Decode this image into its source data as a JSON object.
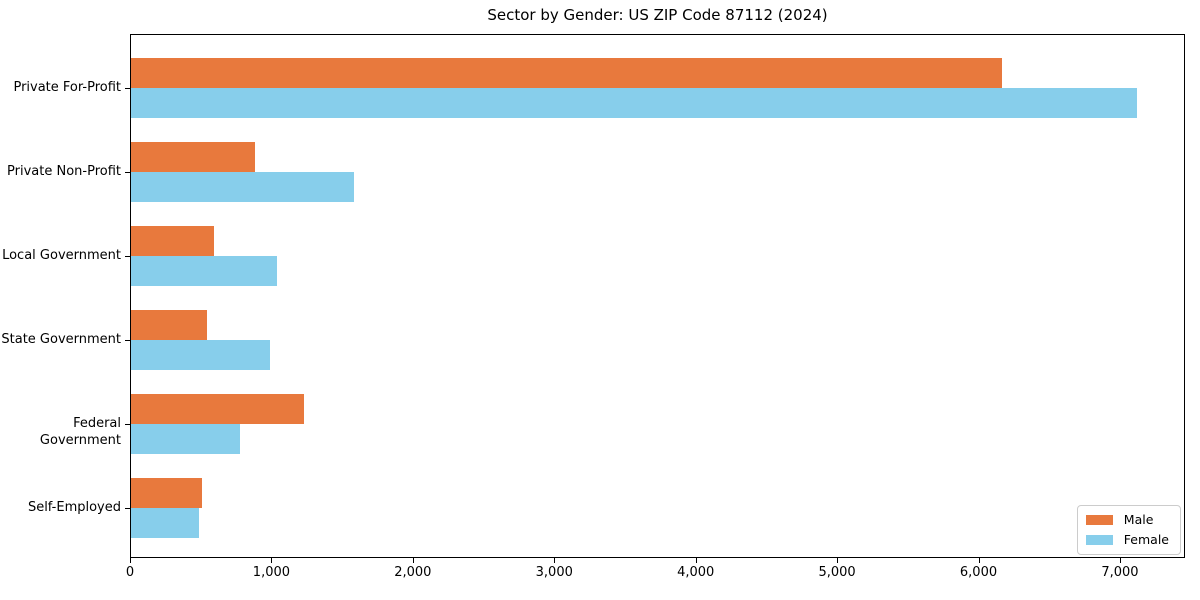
{
  "chart_data": {
    "type": "bar",
    "orientation": "horizontal",
    "title": "Sector by Gender: US ZIP Code 87112 (2024)",
    "categories": [
      "Private For-Profit",
      "Private Non-Profit",
      "Local Government",
      "State Government",
      "Federal Government",
      "Self-Employed"
    ],
    "series": [
      {
        "name": "Male",
        "color": "#e8793d",
        "values": [
          6160,
          880,
          585,
          540,
          1220,
          505
        ]
      },
      {
        "name": "Female",
        "color": "#87ceeb",
        "values": [
          7110,
          1580,
          1030,
          980,
          770,
          480
        ]
      }
    ],
    "xlim": [
      0,
      7460
    ],
    "xticks": {
      "values": [
        0,
        1000,
        2000,
        3000,
        4000,
        5000,
        6000,
        7000
      ],
      "labels": [
        "0",
        "1,000",
        "2,000",
        "3,000",
        "4,000",
        "5,000",
        "6,000",
        "7,000"
      ]
    },
    "xlabel": "",
    "ylabel": "",
    "grid": false,
    "background": "#ffffff",
    "legend": {
      "position": "lower right"
    }
  }
}
